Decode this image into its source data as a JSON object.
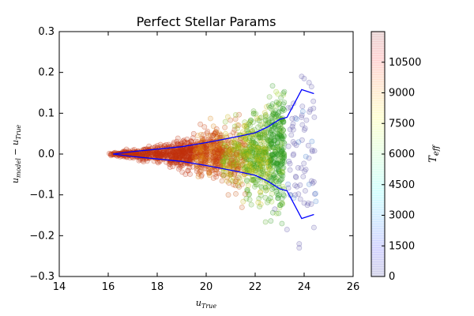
{
  "chart_data": {
    "type": "scatter",
    "title": "Perfect Stellar Params",
    "xlabel": {
      "main": "u",
      "sub": "True"
    },
    "ylabel": {
      "main_a": "u",
      "sub_a": "model",
      "op": " − ",
      "main_b": "u",
      "sub_b": "True"
    },
    "xlim": [
      14,
      26
    ],
    "ylim": [
      -0.3,
      0.3
    ],
    "xticks": [
      14,
      16,
      18,
      20,
      22,
      24,
      26
    ],
    "xtick_labels": [
      "14",
      "16",
      "18",
      "20",
      "22",
      "24",
      "26"
    ],
    "yticks": [
      -0.3,
      -0.2,
      -0.1,
      0.0,
      0.1,
      0.2,
      0.3
    ],
    "ytick_labels": [
      "−0.3",
      "−0.2",
      "−0.1",
      "0.0",
      "0.1",
      "0.2",
      "0.3"
    ],
    "grid": false,
    "point_style": {
      "marker": "circle",
      "alpha": 0.15,
      "edge": "colormap"
    },
    "colorbar": {
      "label": {
        "main": "T",
        "sub": "eff"
      },
      "range": [
        0,
        12000
      ],
      "ticks": [
        0,
        1500,
        3000,
        4500,
        6000,
        7500,
        9000,
        10500
      ],
      "tick_labels": [
        "0",
        "1500",
        "3000",
        "4500",
        "6000",
        "7500",
        "9000",
        "10500"
      ],
      "colormap": "jet"
    },
    "scatter_regions": [
      {
        "x_range": [
          16.0,
          20.5
        ],
        "color_teff": "red-orange (~6000-7000)"
      },
      {
        "x_range": [
          20.5,
          22.5
        ],
        "color_teff": "yellow-green (~3500-5000)"
      },
      {
        "x_range": [
          22.5,
          23.2
        ],
        "color_teff": "green (~3000-4000)"
      },
      {
        "x_range": [
          23.2,
          24.5
        ],
        "color_teff": "blue-purple (~0-1500)"
      }
    ],
    "series": [
      {
        "name": "",
        "color": "#0000ff",
        "x": [
          16.2,
          17.0,
          18.0,
          19.0,
          20.0,
          20.7,
          21.3,
          22.0,
          22.5,
          23.0,
          23.3,
          23.9,
          24.4
        ],
        "y": [
          0.0,
          0.006,
          0.012,
          0.018,
          0.028,
          0.036,
          0.043,
          0.052,
          0.066,
          0.085,
          0.09,
          0.158,
          0.148
        ]
      },
      {
        "name": "",
        "color": "#0000ff",
        "x": [
          16.2,
          17.0,
          18.0,
          19.0,
          20.0,
          20.7,
          21.3,
          22.0,
          22.5,
          23.0,
          23.3,
          23.9,
          24.4
        ],
        "y": [
          0.0,
          -0.006,
          -0.012,
          -0.018,
          -0.028,
          -0.036,
          -0.043,
          -0.052,
          -0.066,
          -0.085,
          -0.09,
          -0.158,
          -0.148
        ]
      }
    ]
  }
}
